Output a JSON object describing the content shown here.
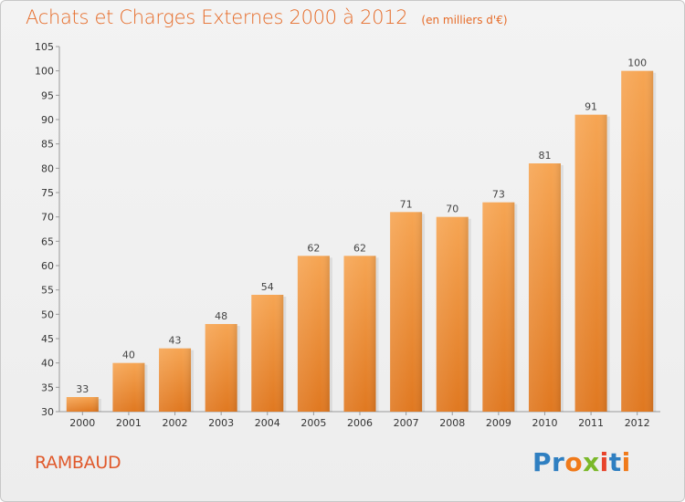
{
  "header": {
    "title": "Achats et Charges Externes 2000 à 2012",
    "subtitle": "(en milliers d'€)"
  },
  "footer": {
    "commune": "RAMBAUD",
    "logo_text": "Proxiti",
    "logo_letters": [
      {
        "char": "P",
        "color": "#2f7fc1"
      },
      {
        "char": "r",
        "color": "#2f7fc1"
      },
      {
        "char": "o",
        "color": "#f07a1a"
      },
      {
        "char": "x",
        "color": "#7ab829"
      },
      {
        "char": "i",
        "color": "#e8432b"
      },
      {
        "char": "t",
        "color": "#2f7fc1"
      },
      {
        "char": "i",
        "color": "#f07a1a"
      }
    ]
  },
  "colors": {
    "title": "#e66b28",
    "bar_light": "#f6a553",
    "bar_dark": "#e07820",
    "commune": "#e0592b"
  },
  "chart_data": {
    "type": "bar",
    "title": "Achats et Charges Externes 2000 à 2012",
    "subtitle": "(en milliers d'€)",
    "categories": [
      "2000",
      "2001",
      "2002",
      "2003",
      "2004",
      "2005",
      "2006",
      "2007",
      "2008",
      "2009",
      "2010",
      "2011",
      "2012"
    ],
    "values": [
      33,
      40,
      43,
      48,
      54,
      62,
      62,
      71,
      70,
      73,
      81,
      91,
      100
    ],
    "ylim": [
      30,
      105
    ],
    "yticks": [
      30,
      35,
      40,
      45,
      50,
      55,
      60,
      65,
      70,
      75,
      80,
      85,
      90,
      95,
      100,
      105
    ],
    "grid": false
  }
}
